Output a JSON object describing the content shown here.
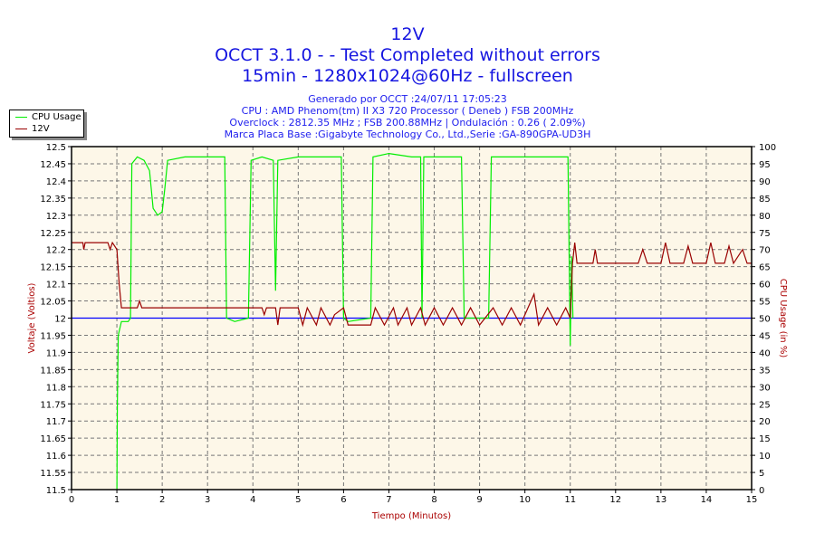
{
  "chart_data": {
    "type": "line",
    "title": "12V",
    "subtitle": [
      "OCCT 3.1.0 -  - Test Completed without errors",
      "15min - 1280x1024@60Hz - fullscreen"
    ],
    "info": [
      "Generado por OCCT :24/07/11 17:05:23",
      "CPU : AMD Phenom(tm) II X3 720 Processor ( Deneb ) FSB 200MHz",
      "Overclock : 2812.35 MHz ; FSB 200.88MHz | Ondulación : 0.26 ( 2.09%)",
      "Marca Placa Base :Gigabyte Technology Co., Ltd.,Serie :GA-890GPA-UD3H"
    ],
    "xlabel": "Tiempo (Minutos)",
    "ylabel": "Voltaje (Voltios)",
    "y2label": "CPU Usage (in %)",
    "xlim": [
      0,
      15
    ],
    "ylim": [
      11.5,
      12.5
    ],
    "y2lim": [
      0,
      100
    ],
    "xticks": [
      "0",
      "1",
      "2",
      "3",
      "4",
      "5",
      "6",
      "7",
      "8",
      "9",
      "10",
      "11",
      "12",
      "13",
      "14",
      "15"
    ],
    "yticks": [
      "12.5",
      "12.45",
      "12.4",
      "12.35",
      "12.3",
      "12.25",
      "12.2",
      "12.15",
      "12.1",
      "12.05",
      "12",
      "11.95",
      "11.9",
      "11.85",
      "11.8",
      "11.75",
      "11.7",
      "11.65",
      "11.6",
      "11.55",
      "11.5"
    ],
    "y2ticks": [
      "100",
      "95",
      "90",
      "85",
      "80",
      "75",
      "70",
      "65",
      "60",
      "55",
      "50",
      "45",
      "40",
      "35",
      "30",
      "25",
      "20",
      "15",
      "10",
      "5",
      "0"
    ],
    "reference_line": 12.0,
    "grid": true,
    "legend_position": "top-left",
    "legend": [
      "CPU Usage",
      "12V"
    ],
    "colors": {
      "cpu": "#00ee00",
      "v12": "#990000",
      "ref": "#0000ff",
      "bg": "#fdf7e8",
      "title": "#1515e0",
      "axis_label": "#aa0000"
    },
    "series": [
      {
        "name": "CPU Usage",
        "axis": "right",
        "points": [
          [
            1.0,
            0
          ],
          [
            1.01,
            25
          ],
          [
            1.03,
            45
          ],
          [
            1.1,
            49
          ],
          [
            1.25,
            49
          ],
          [
            1.3,
            50
          ],
          [
            1.33,
            95
          ],
          [
            1.45,
            97
          ],
          [
            1.6,
            96
          ],
          [
            1.72,
            93
          ],
          [
            1.8,
            82
          ],
          [
            1.9,
            80
          ],
          [
            2.0,
            81
          ],
          [
            2.06,
            88
          ],
          [
            2.12,
            96
          ],
          [
            2.5,
            97
          ],
          [
            3.0,
            97
          ],
          [
            3.38,
            97
          ],
          [
            3.42,
            50
          ],
          [
            3.6,
            49
          ],
          [
            3.9,
            50
          ],
          [
            3.96,
            96
          ],
          [
            4.2,
            97
          ],
          [
            4.45,
            96
          ],
          [
            4.5,
            58
          ],
          [
            4.55,
            96
          ],
          [
            5.0,
            97
          ],
          [
            5.5,
            97
          ],
          [
            5.95,
            97
          ],
          [
            6.0,
            50
          ],
          [
            6.1,
            49
          ],
          [
            6.6,
            50
          ],
          [
            6.65,
            97
          ],
          [
            7.0,
            98
          ],
          [
            7.5,
            97
          ],
          [
            7.7,
            97
          ],
          [
            7.73,
            50
          ],
          [
            7.77,
            97
          ],
          [
            8.2,
            97
          ],
          [
            8.6,
            97
          ],
          [
            8.66,
            50
          ],
          [
            9.2,
            50
          ],
          [
            9.26,
            97
          ],
          [
            10.0,
            97
          ],
          [
            10.5,
            97
          ],
          [
            10.95,
            97
          ],
          [
            11.0,
            42
          ],
          [
            11.03,
            68
          ],
          [
            11.06,
            50
          ]
        ]
      },
      {
        "name": "12V",
        "axis": "left",
        "points": [
          [
            0,
            12.22
          ],
          [
            0.25,
            12.22
          ],
          [
            0.27,
            12.2
          ],
          [
            0.3,
            12.22
          ],
          [
            0.8,
            12.22
          ],
          [
            0.85,
            12.2
          ],
          [
            0.9,
            12.22
          ],
          [
            1.0,
            12.2
          ],
          [
            1.05,
            12.1
          ],
          [
            1.1,
            12.03
          ],
          [
            1.45,
            12.03
          ],
          [
            1.5,
            12.05
          ],
          [
            1.55,
            12.03
          ],
          [
            3.9,
            12.03
          ],
          [
            4.2,
            12.03
          ],
          [
            4.25,
            12.01
          ],
          [
            4.3,
            12.03
          ],
          [
            4.5,
            12.03
          ],
          [
            4.55,
            11.98
          ],
          [
            4.6,
            12.03
          ],
          [
            5.0,
            12.03
          ],
          [
            5.1,
            11.98
          ],
          [
            5.2,
            12.03
          ],
          [
            5.4,
            11.98
          ],
          [
            5.5,
            12.03
          ],
          [
            5.7,
            11.98
          ],
          [
            5.8,
            12.01
          ],
          [
            6.0,
            12.03
          ],
          [
            6.1,
            11.98
          ],
          [
            6.6,
            11.98
          ],
          [
            6.7,
            12.03
          ],
          [
            6.9,
            11.98
          ],
          [
            7.1,
            12.03
          ],
          [
            7.2,
            11.98
          ],
          [
            7.4,
            12.03
          ],
          [
            7.5,
            11.98
          ],
          [
            7.7,
            12.03
          ],
          [
            7.8,
            11.98
          ],
          [
            8.0,
            12.03
          ],
          [
            8.2,
            11.98
          ],
          [
            8.4,
            12.03
          ],
          [
            8.6,
            11.98
          ],
          [
            8.8,
            12.03
          ],
          [
            9.0,
            11.98
          ],
          [
            9.3,
            12.03
          ],
          [
            9.5,
            11.98
          ],
          [
            9.7,
            12.03
          ],
          [
            9.9,
            11.98
          ],
          [
            10.2,
            12.07
          ],
          [
            10.3,
            11.98
          ],
          [
            10.5,
            12.03
          ],
          [
            10.7,
            11.98
          ],
          [
            10.9,
            12.03
          ],
          [
            11.0,
            12.0
          ],
          [
            11.05,
            12.16
          ],
          [
            11.1,
            12.22
          ],
          [
            11.15,
            12.16
          ],
          [
            11.5,
            12.16
          ],
          [
            11.55,
            12.2
          ],
          [
            11.6,
            12.16
          ],
          [
            12.5,
            12.16
          ],
          [
            12.6,
            12.2
          ],
          [
            12.7,
            12.16
          ],
          [
            13.0,
            12.16
          ],
          [
            13.1,
            12.22
          ],
          [
            13.2,
            12.16
          ],
          [
            13.5,
            12.16
          ],
          [
            13.6,
            12.21
          ],
          [
            13.7,
            12.16
          ],
          [
            14.0,
            12.16
          ],
          [
            14.1,
            12.22
          ],
          [
            14.2,
            12.16
          ],
          [
            14.4,
            12.16
          ],
          [
            14.5,
            12.21
          ],
          [
            14.6,
            12.16
          ],
          [
            14.8,
            12.2
          ],
          [
            14.9,
            12.16
          ],
          [
            15.0,
            12.16
          ]
        ]
      }
    ]
  }
}
